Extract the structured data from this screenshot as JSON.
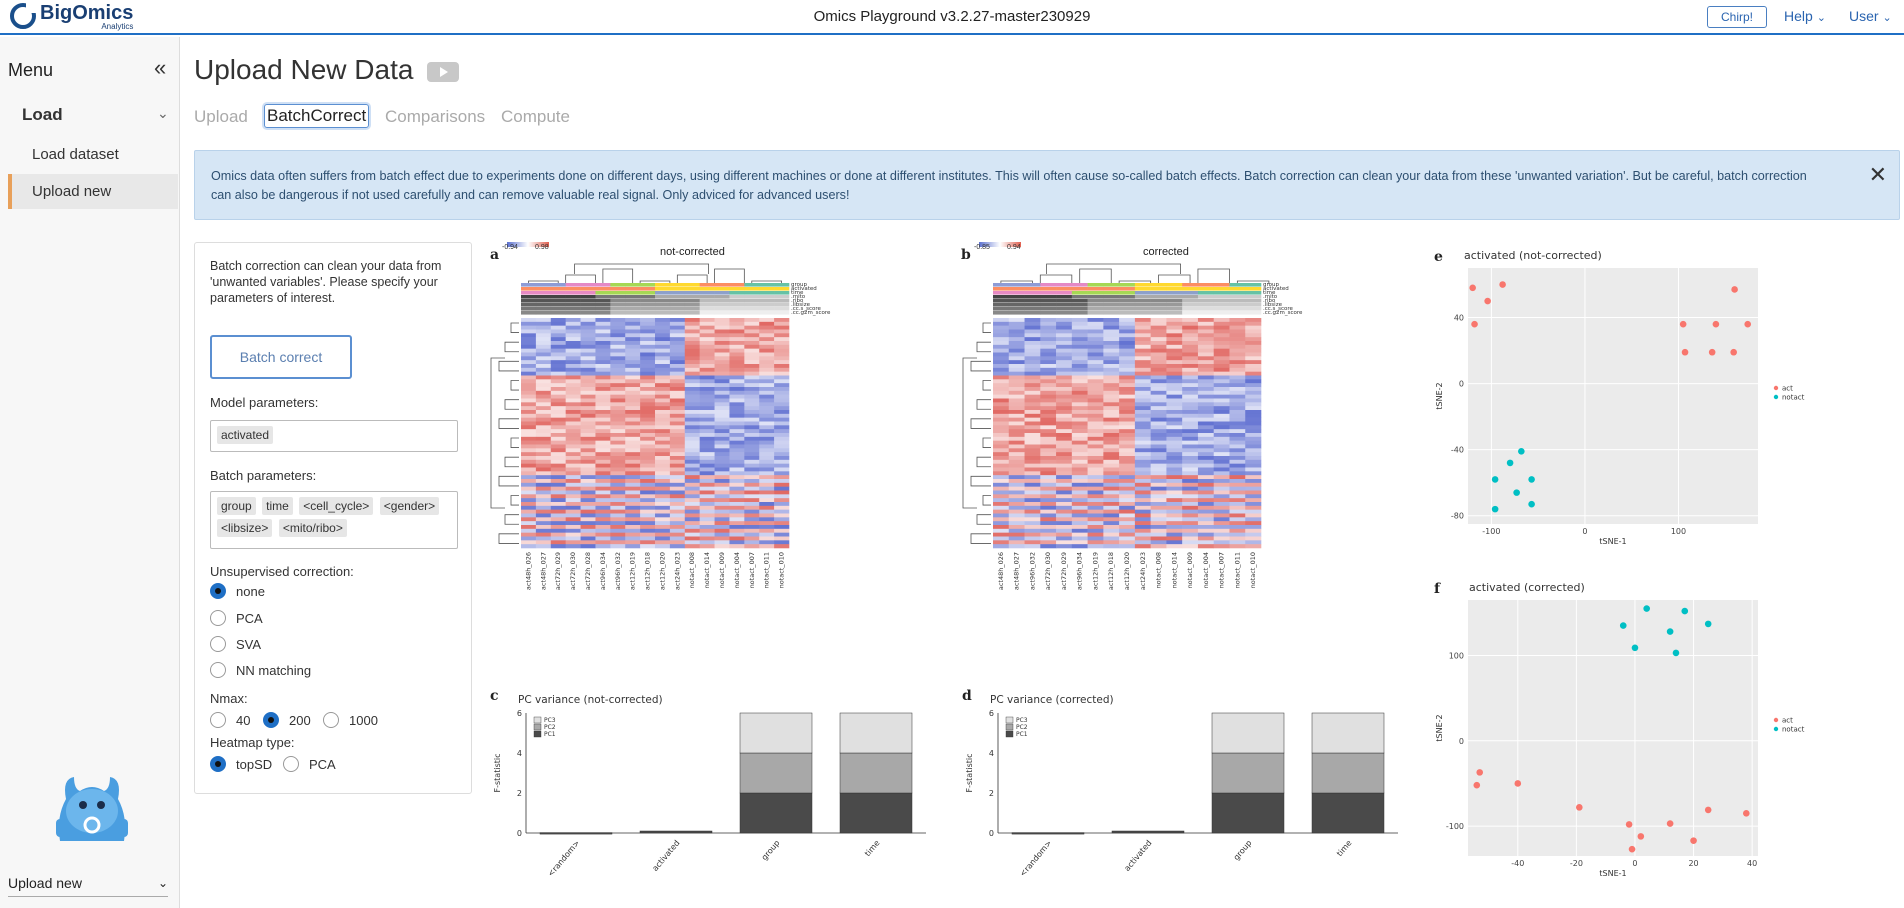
{
  "header": {
    "logo_name": "BigOmics",
    "logo_sub": "Analytics",
    "app_title": "Omics Playground v3.2.27-master230929",
    "chirp": "Chirp!",
    "help": "Help",
    "user": "User"
  },
  "sidebar": {
    "menu_title": "Menu",
    "section": "Load",
    "items": [
      {
        "label": "Load dataset",
        "active": false
      },
      {
        "label": "Upload new",
        "active": true
      }
    ],
    "footer_select": "Upload new"
  },
  "main": {
    "title": "Upload New Data",
    "tabs": [
      {
        "label": "Upload",
        "active": false
      },
      {
        "label": "BatchCorrect",
        "active": true
      },
      {
        "label": "Comparisons",
        "active": false
      },
      {
        "label": "Compute",
        "active": false
      }
    ],
    "alert": "Omics data often suffers from batch effect due to experiments done on different days, using different machines or done at different institutes. This will often cause so-called batch effects. Batch correction can clean your data from these 'unwanted variation'. But be careful, batch correction can also be dangerous if not used carefully and can remove valuable real signal. Only adviced for advanced users!"
  },
  "panel": {
    "description": "Batch correction can clean your data from 'unwanted variables'. Please specify your parameters of interest.",
    "button": "Batch correct",
    "model_label": "Model parameters:",
    "model_chips": [
      "activated"
    ],
    "batch_label": "Batch parameters:",
    "batch_chips": [
      "group",
      "time",
      "<cell_cycle>",
      "<gender>",
      "<libsize>",
      "<mito/ribo>"
    ],
    "unsup_label": "Unsupervised correction:",
    "unsup_options": [
      {
        "label": "none",
        "selected": true
      },
      {
        "label": "PCA",
        "selected": false
      },
      {
        "label": "SVA",
        "selected": false
      },
      {
        "label": "NN matching",
        "selected": false
      }
    ],
    "nmax_label": "Nmax:",
    "nmax_options": [
      {
        "label": "40",
        "selected": false
      },
      {
        "label": "200",
        "selected": true
      },
      {
        "label": "1000",
        "selected": false
      }
    ],
    "heatmap_label": "Heatmap type:",
    "heatmap_options": [
      {
        "label": "topSD",
        "selected": true
      },
      {
        "label": "PCA",
        "selected": false
      }
    ]
  },
  "figures": {
    "a": {
      "letter": "a",
      "title": "not-corrected",
      "legend_min": "-0.94",
      "legend_max": "0.98",
      "samples": [
        "act48h_026",
        "act48h_027",
        "act72h_029",
        "act72h_030",
        "act72h_028",
        "act96h_034",
        "act96h_032",
        "act12h_019",
        "act12h_018",
        "act12h_020",
        "act24h_023",
        "notact_008",
        "notact_014",
        "notact_009",
        "notact_004",
        "notact_007",
        "notact_011",
        "notact_010"
      ]
    },
    "b": {
      "letter": "b",
      "title": "corrected",
      "legend_min": "-0.85",
      "legend_max": "0.94",
      "samples": [
        "act48h_026",
        "act48h_027",
        "act96h_032",
        "act72h_030",
        "act72h_029",
        "act96h_034",
        "act12h_019",
        "act12h_018",
        "act12h_020",
        "act24h_023",
        "notact_008",
        "notact_014",
        "notact_009",
        "notact_004",
        "notact_007",
        "notact_011",
        "notact_010"
      ]
    },
    "annotation_rows": [
      "group",
      "activated",
      "time",
      ".mito",
      ".ribo",
      ".libsize",
      ".cc.s_score",
      ".cc.g2m_score"
    ],
    "c": {
      "letter": "c",
      "title": "PC variance (not-corrected)"
    },
    "d": {
      "letter": "d",
      "title": "PC variance (corrected)"
    },
    "e": {
      "letter": "e",
      "title": "activated (not-corrected)"
    },
    "f": {
      "letter": "f",
      "title": "activated (corrected)"
    },
    "tsne_legend": [
      "act",
      "notact"
    ]
  },
  "chart_data": [
    {
      "type": "bar",
      "title": "PC variance (not-corrected)",
      "xlabel": "",
      "ylabel": "F-statistic",
      "categories": [
        "<random>",
        "activated",
        "group",
        "time"
      ],
      "series": [
        {
          "name": "PC1",
          "values": [
            0.02,
            0.1,
            2.0,
            2.0
          ]
        },
        {
          "name": "PC2",
          "values": [
            0.0,
            0.0,
            2.0,
            2.0
          ]
        },
        {
          "name": "PC3",
          "values": [
            0.0,
            0.0,
            2.0,
            2.0
          ]
        }
      ],
      "stacked": true,
      "ylim": [
        0,
        6
      ],
      "yticks": [
        0,
        2,
        4,
        6
      ],
      "colors": [
        "#4a4a4a",
        "#a8a8a8",
        "#e0e0e0"
      ]
    },
    {
      "type": "bar",
      "title": "PC variance (corrected)",
      "xlabel": "",
      "ylabel": "F-statistic",
      "categories": [
        "<random>",
        "activated",
        "group",
        "time"
      ],
      "series": [
        {
          "name": "PC1",
          "values": [
            0.02,
            0.1,
            2.0,
            2.0
          ]
        },
        {
          "name": "PC2",
          "values": [
            0.0,
            0.0,
            2.0,
            2.0
          ]
        },
        {
          "name": "PC3",
          "values": [
            0.0,
            0.0,
            2.0,
            2.0
          ]
        }
      ],
      "stacked": true,
      "ylim": [
        0,
        6
      ],
      "yticks": [
        0,
        2,
        4,
        6
      ],
      "colors": [
        "#4a4a4a",
        "#a8a8a8",
        "#e0e0e0"
      ]
    },
    {
      "type": "scatter",
      "title": "activated (not-corrected)",
      "xlabel": "tSNE-1",
      "ylabel": "tSNE-2",
      "xlim": [
        -125,
        185
      ],
      "ylim": [
        -85,
        70
      ],
      "xticks": [
        -100,
        0,
        100
      ],
      "yticks": [
        -80,
        -40,
        0,
        40
      ],
      "series": [
        {
          "name": "act",
          "color": "#f8766d",
          "points": [
            [
              -120,
              58
            ],
            [
              -104,
              50
            ],
            [
              -88,
              60
            ],
            [
              -118,
              36
            ],
            [
              105,
              36
            ],
            [
              140,
              36
            ],
            [
              107,
              19
            ],
            [
              136,
              19
            ],
            [
              159,
              19
            ],
            [
              160,
              57
            ],
            [
              174,
              36
            ]
          ]
        },
        {
          "name": "notact",
          "color": "#00bfc4",
          "points": [
            [
              -68,
              -41
            ],
            [
              -80,
              -48
            ],
            [
              -96,
              -58
            ],
            [
              -57,
              -58
            ],
            [
              -73,
              -66
            ],
            [
              -96,
              -76
            ],
            [
              -57,
              -73
            ]
          ]
        }
      ]
    },
    {
      "type": "scatter",
      "title": "activated (corrected)",
      "xlabel": "tSNE-1",
      "ylabel": "tSNE-2",
      "xlim": [
        -57,
        42
      ],
      "ylim": [
        -135,
        165
      ],
      "xticks": [
        -40,
        -20,
        0,
        20,
        40
      ],
      "yticks": [
        -100,
        0,
        100
      ],
      "series": [
        {
          "name": "act",
          "color": "#f8766d",
          "points": [
            [
              -53,
              -37
            ],
            [
              -54,
              -52
            ],
            [
              -40,
              -50
            ],
            [
              -19,
              -78
            ],
            [
              -2,
              -98
            ],
            [
              -1,
              -127
            ],
            [
              2,
              -112
            ],
            [
              12,
              -97
            ],
            [
              20,
              -117
            ],
            [
              25,
              -81
            ],
            [
              38,
              -85
            ]
          ]
        },
        {
          "name": "notact",
          "color": "#00bfc4",
          "points": [
            [
              4,
              155
            ],
            [
              17,
              152
            ],
            [
              -4,
              135
            ],
            [
              25,
              137
            ],
            [
              12,
              128
            ],
            [
              0,
              109
            ],
            [
              14,
              103
            ]
          ]
        }
      ]
    }
  ]
}
